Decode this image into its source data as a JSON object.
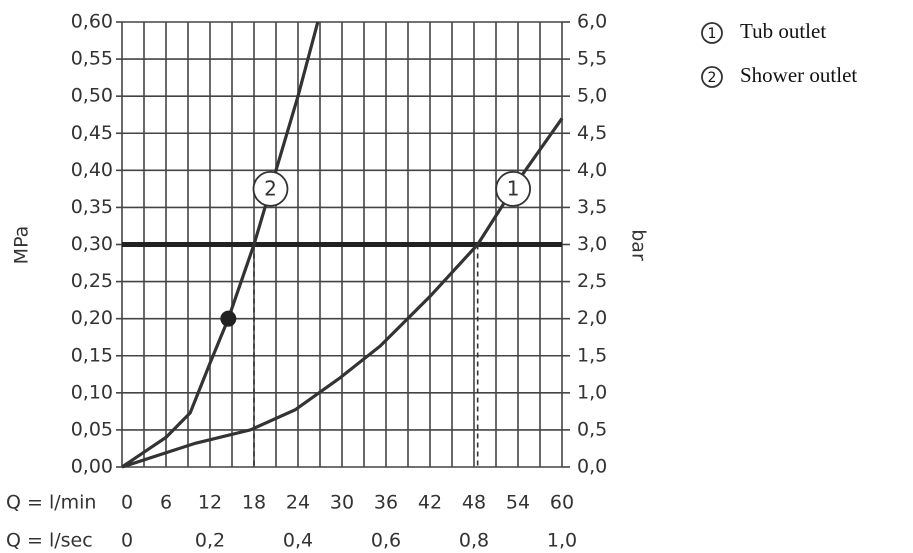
{
  "chart_data": {
    "type": "line",
    "y_label": "MPa",
    "y2_label": "bar",
    "x_label": "Q = l/min",
    "x2_label": "Q = l/sec",
    "xlim": [
      0,
      60
    ],
    "xticks": [
      0,
      6,
      12,
      18,
      24,
      30,
      36,
      42,
      48,
      54,
      60
    ],
    "x2lim": [
      0,
      1
    ],
    "x2ticks": [
      {
        "value": 0,
        "label": "0"
      },
      {
        "value": 0.2,
        "label": "0,2"
      },
      {
        "value": 0.4,
        "label": "0,4"
      },
      {
        "value": 0.6,
        "label": "0,6"
      },
      {
        "value": 0.8,
        "label": "0,8"
      },
      {
        "value": 1,
        "label": "1,0"
      }
    ],
    "x_grid_lines": [
      0,
      3,
      6,
      9,
      12,
      15,
      18,
      21,
      24,
      27,
      30,
      33,
      36,
      39,
      42,
      45,
      48,
      51,
      54,
      57,
      60
    ],
    "ylim": [
      0,
      0.6
    ],
    "yticks": [
      {
        "value": 0,
        "label": "0,00"
      },
      {
        "value": 0.05,
        "label": "0,05"
      },
      {
        "value": 0.1,
        "label": "0,10"
      },
      {
        "value": 0.15,
        "label": "0,15"
      },
      {
        "value": 0.2,
        "label": "0,20"
      },
      {
        "value": 0.25,
        "label": "0,25"
      },
      {
        "value": 0.3,
        "label": "0,30"
      },
      {
        "value": 0.35,
        "label": "0,35"
      },
      {
        "value": 0.4,
        "label": "0,40"
      },
      {
        "value": 0.45,
        "label": "0,45"
      },
      {
        "value": 0.5,
        "label": "0,50"
      },
      {
        "value": 0.55,
        "label": "0,55"
      },
      {
        "value": 0.6,
        "label": "0,60"
      }
    ],
    "y2lim": [
      0,
      6
    ],
    "y2ticks": [
      {
        "value": 0,
        "label": "0,0"
      },
      {
        "value": 0.5,
        "label": "0,5"
      },
      {
        "value": 1,
        "label": "1,0"
      },
      {
        "value": 1.5,
        "label": "1,5"
      },
      {
        "value": 2,
        "label": "2,0"
      },
      {
        "value": 2.5,
        "label": "2,5"
      },
      {
        "value": 3,
        "label": "3,0"
      },
      {
        "value": 3.5,
        "label": "3,5"
      },
      {
        "value": 4,
        "label": "4,0"
      },
      {
        "value": 4.5,
        "label": "4,5"
      },
      {
        "value": 5,
        "label": "5,0"
      },
      {
        "value": 5.5,
        "label": "5,5"
      },
      {
        "value": 6,
        "label": "6,0"
      }
    ],
    "grid": true,
    "series": [
      {
        "name": "Tub outlet",
        "label": "1",
        "color": "#333333",
        "x": [
          0,
          5,
          10,
          17.5,
          23.6,
          29.7,
          35.2,
          42,
          48.5,
          54.3,
          60
        ],
        "values": [
          0,
          0.016,
          0.032,
          0.05,
          0.077,
          0.12,
          0.163,
          0.23,
          0.3,
          0.39,
          0.47
        ]
      },
      {
        "name": "Shower outlet",
        "label": "2",
        "color": "#333333",
        "x": [
          0,
          6,
          9.3,
          12,
          14.5,
          18,
          21,
          24,
          26.7
        ],
        "values": [
          0,
          0.04,
          0.073,
          0.14,
          0.2,
          0.3,
          0.4,
          0.5,
          0.6
        ]
      }
    ],
    "reference_line": 0.3,
    "operating_point": {
      "x": 14.5,
      "y": 0.2
    },
    "guides": [
      {
        "x": 18,
        "y": 0.3
      },
      {
        "x": 48.5,
        "y": 0.3
      }
    ],
    "legend": "top-right"
  }
}
